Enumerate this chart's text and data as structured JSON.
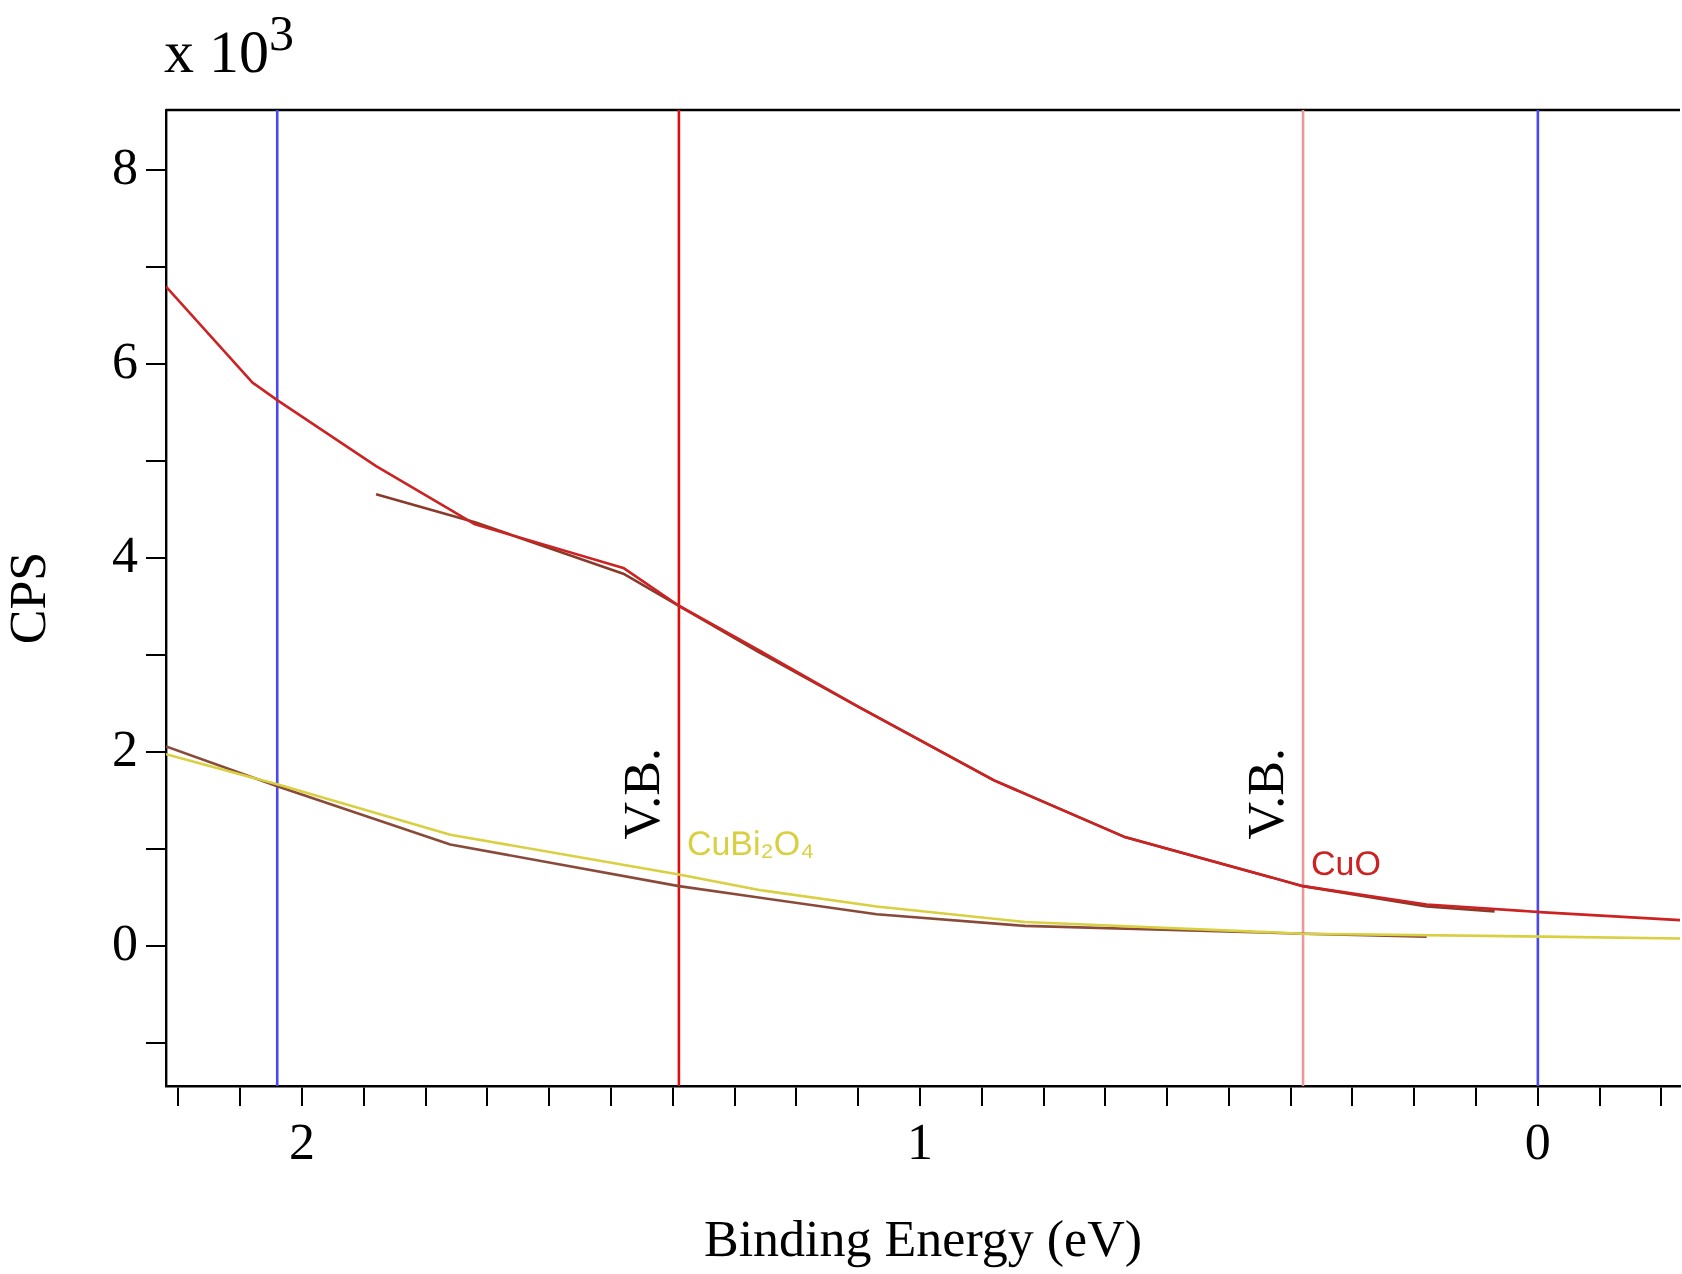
{
  "chart_data": {
    "type": "line",
    "xlabel": "Binding Energy (eV)",
    "ylabel": "CPS",
    "annotations": [
      "x 10$^{3}$"
    ],
    "xlim": [
      2.22,
      -0.23
    ],
    "ylim": [
      -1.44,
      8.62
    ],
    "xticks": [
      {
        "value": 2.2,
        "label": null
      },
      {
        "value": 2.1,
        "label": null
      },
      2,
      {
        "value": 1.9,
        "label": null
      },
      {
        "value": 1.8,
        "label": null
      },
      {
        "value": 1.7,
        "label": null
      },
      {
        "value": 1.6,
        "label": null
      },
      {
        "value": 1.5,
        "label": null
      },
      {
        "value": 1.4,
        "label": null
      },
      {
        "value": 1.3,
        "label": null
      },
      {
        "value": 1.2,
        "label": null
      },
      {
        "value": 1.1,
        "label": null
      },
      1,
      {
        "value": 0.9,
        "label": null
      },
      {
        "value": 0.8,
        "label": null
      },
      {
        "value": 0.7,
        "label": null
      },
      {
        "value": 0.6,
        "label": null
      },
      {
        "value": 0.5,
        "label": null
      },
      {
        "value": 0.4,
        "label": null
      },
      {
        "value": 0.3,
        "label": null
      },
      {
        "value": 0.2,
        "label": null
      },
      {
        "value": 0.1,
        "label": null
      },
      0,
      {
        "value": -0.1,
        "label": null
      },
      {
        "value": -0.2,
        "label": null
      }
    ],
    "yticks": [
      {
        "value": -1,
        "label": null
      },
      0,
      {
        "value": 1,
        "label": null
      },
      2,
      {
        "value": 3,
        "label": null
      },
      4,
      {
        "value": 5,
        "label": null
      },
      6,
      {
        "value": 7,
        "label": null
      },
      8
    ],
    "grid": false,
    "legend": false,
    "marker": "none",
    "line_style": "solid",
    "ref_lines": [
      {
        "axis": "x",
        "value": 2.04,
        "color": "#4848f0"
      },
      {
        "axis": "x",
        "value": 1.39,
        "label": "V.B.",
        "color": "#dd1010"
      },
      {
        "axis": "x",
        "value": 0.38,
        "label": "V.B.",
        "color": "#e89a9a"
      },
      {
        "axis": "x",
        "value": 0,
        "color": "#4848f0"
      }
    ],
    "series": [
      {
        "name": "CuBi₂O₄",
        "color": "#d8d040",
        "x": [
          2.22,
          2.04,
          1.76,
          1.39,
          1.26,
          1.07,
          0.83,
          0.38,
          -0.01,
          -0.23
        ],
        "values": [
          1.98,
          1.67,
          1.15,
          0.74,
          0.58,
          0.41,
          0.25,
          0.13,
          0.1,
          0.08
        ]
      },
      {
        "color": "#8a4a3a",
        "x": [
          2.22,
          2.04,
          1.76,
          1.39,
          1.07,
          0.83,
          0.38,
          0.18
        ],
        "values": [
          2.06,
          1.65,
          1.05,
          0.62,
          0.33,
          0.21,
          0.13,
          0.1
        ]
      },
      {
        "name": "CuO",
        "color": "#cc2222",
        "x": [
          2.22,
          2.08,
          2.04,
          1.88,
          1.72,
          1.48,
          1.39,
          1.26,
          1.1,
          0.88,
          0.67,
          0.38,
          0.18,
          -0.01,
          -0.23
        ],
        "values": [
          6.8,
          5.81,
          5.63,
          4.95,
          4.35,
          3.9,
          3.51,
          3.05,
          2.47,
          1.71,
          1.13,
          0.62,
          0.43,
          0.35,
          0.27
        ]
      },
      {
        "color": "#8a3a2a",
        "x": [
          1.88,
          1.72,
          1.48,
          1.39,
          1.26,
          1.1,
          0.88,
          0.67,
          0.38,
          0.18,
          0.07
        ],
        "values": [
          4.66,
          4.37,
          3.84,
          3.51,
          3.03,
          2.47,
          1.71,
          1.13,
          0.62,
          0.41,
          0.36
        ]
      }
    ]
  }
}
